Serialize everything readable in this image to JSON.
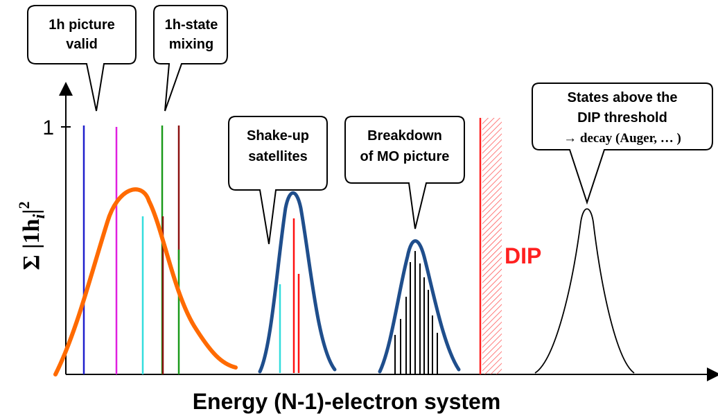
{
  "axes": {
    "x_label": "Energy (N-1)-electron system",
    "y_label_symbol": "Σ |1h",
    "y_label_sub": "i",
    "y_label_tail": "|",
    "y_label_sup": "2",
    "y_tick": "1"
  },
  "bubbles": {
    "valid": {
      "line1": "1h picture",
      "line2": "valid"
    },
    "mixing": {
      "line1": "1h-state",
      "line2": "mixing"
    },
    "shakeup": {
      "line1": "Shake-up",
      "line2": "satellites"
    },
    "breakdown": {
      "line1": "Breakdown",
      "line2": "of MO picture"
    },
    "dip_threshold": {
      "line1": "States above the",
      "line2": "DIP threshold",
      "line3": "→ decay (Auger, … )"
    }
  },
  "dip": {
    "label": "DIP",
    "color": "#ff2020"
  },
  "colors": {
    "orange_curve": "#ff6a00",
    "blue_curve": "#1f4e8c",
    "line_blue": "#1f1fcc",
    "line_magenta": "#e020e0",
    "line_cyan": "#33dddd",
    "line_green": "#1a9a1a",
    "line_darkred": "#8b1010",
    "line_red": "#ff1010"
  }
}
